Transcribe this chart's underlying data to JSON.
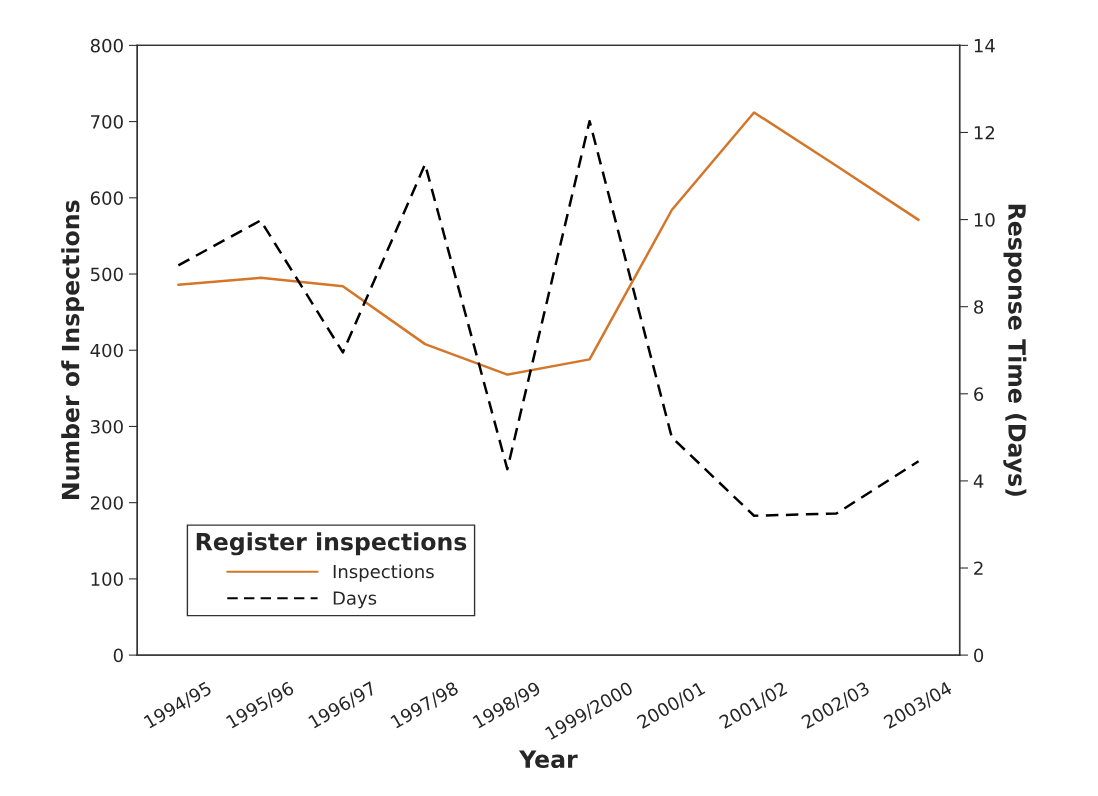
{
  "chart_data": {
    "type": "line",
    "xlabel": "Year",
    "ylabel": "Number of Inspections",
    "y2label": "Response Time (Days)",
    "legend_title": "Register inspections",
    "categories": [
      "1994/95",
      "1995/96",
      "1996/97",
      "1997/98",
      "1998/99",
      "1999/2000",
      "2000/01",
      "2001/02",
      "2002/03",
      "2003/04"
    ],
    "series": [
      {
        "name": "Inspections",
        "color": "#d4762a",
        "line_style": "solid",
        "values": [
          486,
          495,
          484,
          408,
          368,
          388,
          584,
          712,
          642,
          571
        ]
      },
      {
        "name": "Days",
        "color": "#000000",
        "line_style": "dashed",
        "axis": "y2",
        "values": [
          8.95,
          9.98,
          6.95,
          11.27,
          4.27,
          12.26,
          5.0,
          3.2,
          3.25,
          4.45
        ]
      }
    ],
    "ylim": [
      0,
      800
    ],
    "yticks": [
      0,
      100,
      200,
      300,
      400,
      500,
      600,
      700,
      800
    ],
    "y2lim": [
      0,
      14
    ],
    "y2ticks": [
      0,
      2,
      4,
      6,
      8,
      10,
      12,
      14
    ],
    "grid": false,
    "legend": "bottom left"
  }
}
